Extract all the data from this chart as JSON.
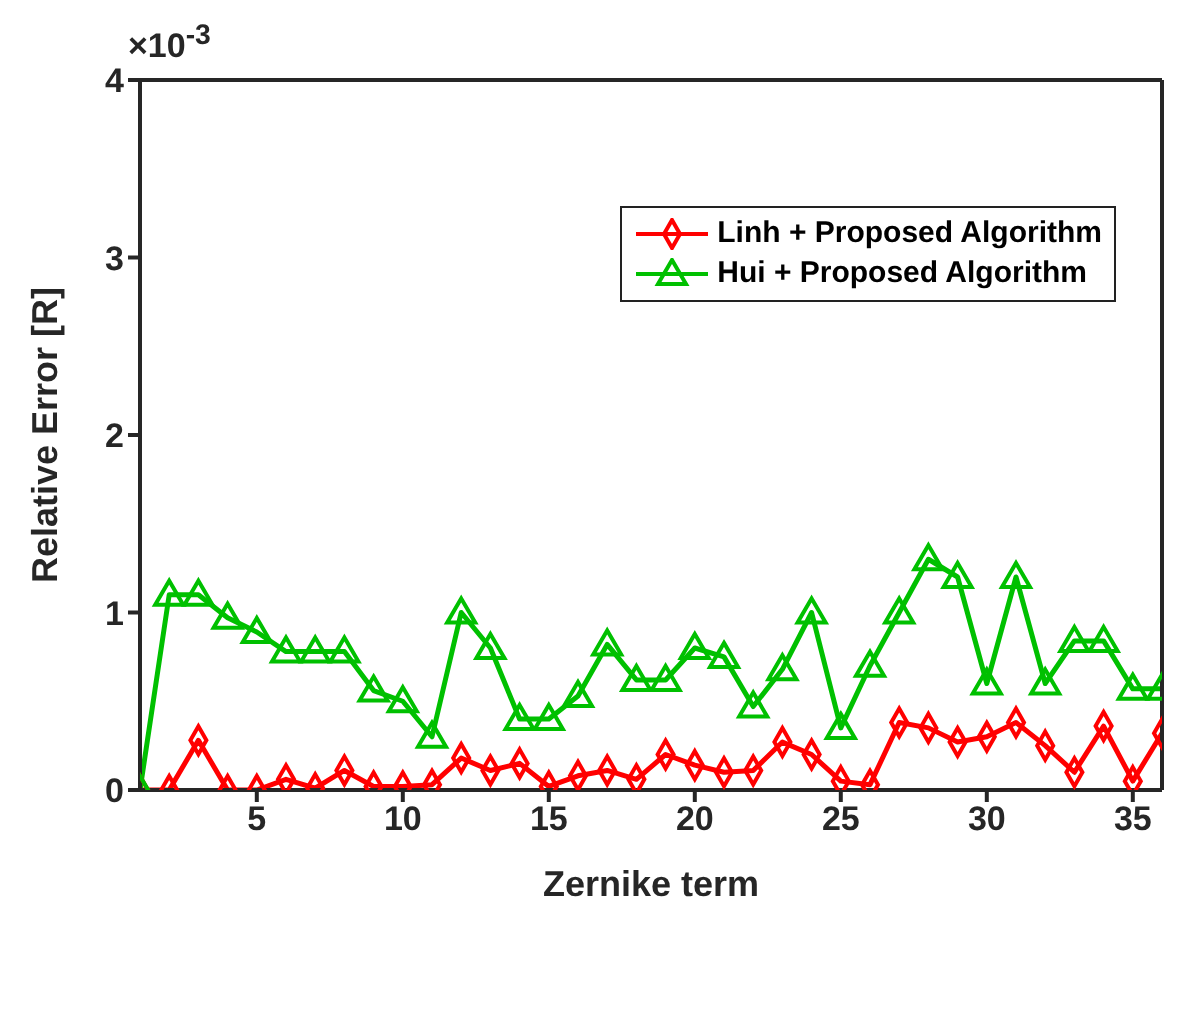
{
  "chart_data": {
    "type": "line",
    "xlabel": "Zernike term",
    "ylabel": "Relative Error [R]",
    "annotations": [
      "×10$^{-3}$"
    ],
    "x": [
      1,
      2,
      3,
      4,
      5,
      6,
      7,
      8,
      9,
      10,
      11,
      12,
      13,
      14,
      15,
      16,
      17,
      18,
      19,
      20,
      21,
      22,
      23,
      24,
      25,
      26,
      27,
      28,
      29,
      30,
      31,
      32,
      33,
      34,
      35,
      36
    ],
    "series": [
      {
        "name": "Linh + Proposed Algorithm",
        "color": "#ff0000",
        "marker": "diamond",
        "values": [
          0,
          0,
          0.28,
          0,
          0,
          0.06,
          0.01,
          0.11,
          0.02,
          0.02,
          0.03,
          0.18,
          0.11,
          0.15,
          0.02,
          0.08,
          0.11,
          0.06,
          0.2,
          0.14,
          0.1,
          0.11,
          0.27,
          0.2,
          0.05,
          0.03,
          0.38,
          0.35,
          0.27,
          0.3,
          0.38,
          0.25,
          0.1,
          0.36,
          0.05,
          0.32
        ]
      },
      {
        "name": "Hui + Proposed Algorithm",
        "color": "#00c000",
        "marker": "triangle",
        "values": [
          0,
          1.1,
          1.1,
          0.97,
          0.89,
          0.78,
          0.78,
          0.78,
          0.56,
          0.5,
          0.3,
          1.0,
          0.8,
          0.4,
          0.4,
          0.53,
          0.82,
          0.62,
          0.62,
          0.8,
          0.75,
          0.47,
          0.68,
          1.0,
          0.35,
          0.7,
          1.0,
          1.3,
          1.2,
          0.6,
          1.2,
          0.6,
          0.84,
          0.84,
          0.57,
          0.57
        ]
      }
    ],
    "xlim": [
      1,
      36
    ],
    "xticks": [
      5,
      10,
      15,
      20,
      25,
      30,
      35
    ],
    "ylim": [
      0,
      4
    ],
    "yticks": [
      0,
      1,
      2,
      3,
      4
    ],
    "grid": false,
    "legend": "top right",
    "line_style": "solid"
  }
}
